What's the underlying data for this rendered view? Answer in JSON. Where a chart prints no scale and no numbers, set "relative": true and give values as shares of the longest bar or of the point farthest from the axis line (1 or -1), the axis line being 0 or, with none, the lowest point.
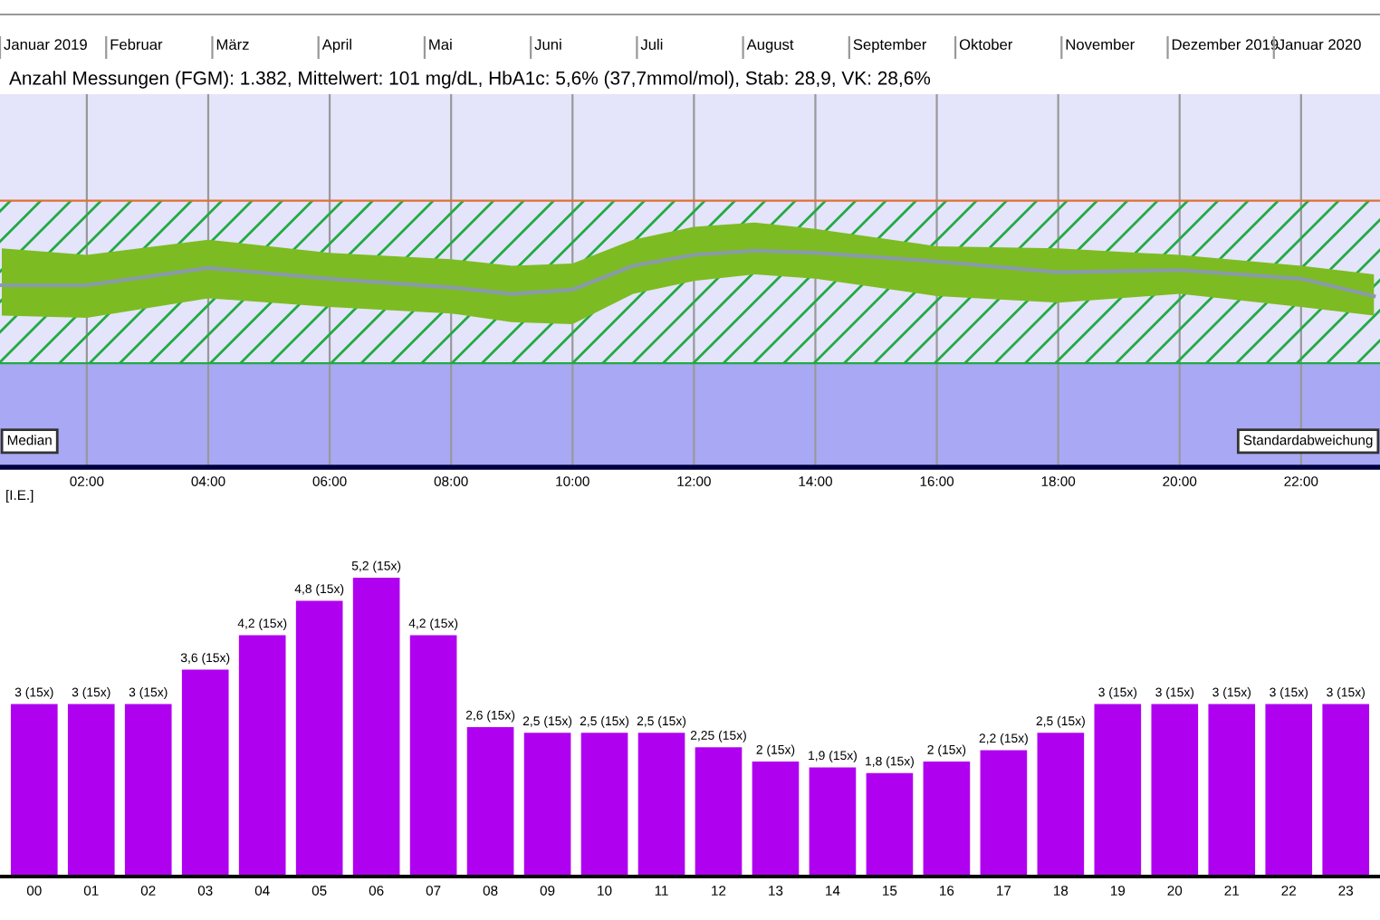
{
  "chart_data": [
    {
      "type": "other",
      "categories": [
        "Januar 2019",
        "Februar",
        "März",
        "April",
        "Mai",
        "Juni",
        "Juli",
        "August",
        "September",
        "Oktober",
        "November",
        "Dezember 2019",
        "Januar 2020"
      ]
    },
    {
      "type": "line",
      "title": "Anzahl Messungen (FGM): 1.382, Mittelwert: 101 mg/dL, HbA1c: 5,6% (37,7mmol/mol), Stab: 28,9, VK: 28,6%",
      "relative": true,
      "x": [
        0.6,
        2,
        4,
        6,
        8,
        9,
        10,
        11,
        12,
        13,
        14,
        16,
        18,
        20,
        22,
        23.2
      ],
      "xlim": [
        0.57,
        23.3
      ],
      "xticks": [
        {
          "value": 2,
          "label": "02:00"
        },
        {
          "value": 4,
          "label": "04:00"
        },
        {
          "value": 6,
          "label": "06:00"
        },
        {
          "value": 8,
          "label": "08:00"
        },
        {
          "value": 10,
          "label": "10:00"
        },
        {
          "value": 12,
          "label": "12:00"
        },
        {
          "value": 14,
          "label": "14:00"
        },
        {
          "value": 16,
          "label": "16:00"
        },
        {
          "value": 18,
          "label": "18:00"
        },
        {
          "value": 20,
          "label": "20:00"
        },
        {
          "value": 22,
          "label": "22:00"
        }
      ],
      "series": [
        {
          "name": "Median",
          "color": "#8a9aaa",
          "values": [
            0.84,
            0.84,
            0.92,
            0.87,
            0.83,
            0.8,
            0.82,
            0.93,
            0.98,
            1.0,
            0.99,
            0.95,
            0.9,
            0.91,
            0.87,
            0.79
          ],
          "lower": [
            0.7,
            0.69,
            0.78,
            0.74,
            0.71,
            0.67,
            0.66,
            0.8,
            0.86,
            0.89,
            0.87,
            0.79,
            0.76,
            0.8,
            0.74,
            0.7
          ],
          "upper": [
            1.01,
            0.98,
            1.05,
            0.99,
            0.96,
            0.93,
            0.94,
            1.05,
            1.11,
            1.13,
            1.1,
            1.02,
            1.01,
            0.98,
            0.93,
            0.89
          ]
        }
      ],
      "bands": [
        {
          "axis": "y",
          "from": 0.48,
          "to": 1.23,
          "color": "#22aa44"
        },
        {
          "axis": "y",
          "from": 0,
          "to": 0.48,
          "color": "#a8a8f4"
        }
      ],
      "ref_lines": [
        {
          "axis": "y",
          "value": 1.23,
          "color": "#e07030"
        },
        {
          "axis": "y",
          "value": 0.48,
          "color": "#22aa44"
        }
      ],
      "annotations": [
        "Standardabweichung"
      ],
      "grid": "x",
      "legend": false,
      "tick_labels": "x"
    },
    {
      "type": "bar",
      "ylabel": "[I.E.]",
      "categories": [
        "00",
        "01",
        "02",
        "03",
        "04",
        "05",
        "06",
        "07",
        "08",
        "09",
        "10",
        "11",
        "12",
        "13",
        "14",
        "15",
        "16",
        "17",
        "18",
        "19",
        "20",
        "21",
        "22",
        "23"
      ],
      "values": [
        3,
        3,
        3,
        3.6,
        4.2,
        4.8,
        5.2,
        4.2,
        2.6,
        2.5,
        2.5,
        2.5,
        2.25,
        2,
        1.9,
        1.8,
        2,
        2.2,
        2.5,
        3,
        3,
        3,
        3,
        3
      ],
      "value_labels": [
        "3 (15x)",
        "3 (15x)",
        "3 (15x)",
        "3,6 (15x)",
        "4,2 (15x)",
        "4,8 (15x)",
        "5,2 (15x)",
        "4,2 (15x)",
        "2,6 (15x)",
        "2,5 (15x)",
        "2,5 (15x)",
        "2,5 (15x)",
        "2,25 (15x)",
        "2 (15x)",
        "1,9 (15x)",
        "1,8 (15x)",
        "2 (15x)",
        "2,2 (15x)",
        "2,5 (15x)",
        "3 (15x)",
        "3 (15x)",
        "3 (15x)",
        "3 (15x)",
        "3 (15x)"
      ],
      "color": "#b000f0",
      "grid": false,
      "legend": false,
      "tick_labels": "x"
    }
  ]
}
